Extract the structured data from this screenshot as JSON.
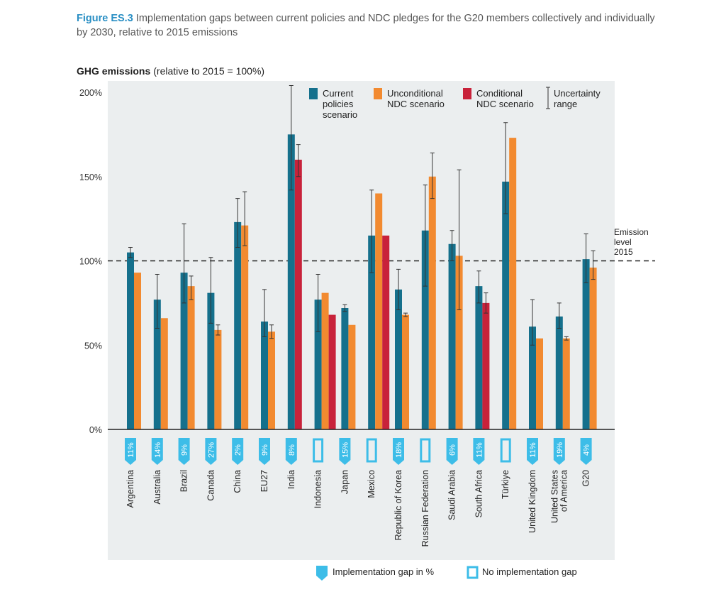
{
  "figure": {
    "label": "Figure ES.3",
    "caption": "Implementation gaps between current policies and NDC pledges for the G20 members collectively and individually by 2030, relative to 2015 emissions"
  },
  "colors": {
    "current": "#15708c",
    "unconditional": "#f28a30",
    "conditional": "#c8223a",
    "gap_fill": "#3dbde8",
    "panel_bg": "#ebeeef",
    "baseline": "#222222"
  },
  "chart_data": {
    "type": "bar",
    "title": "GHG emissions",
    "title_note": "(relative to 2015 = 100%)",
    "ylim": [
      0,
      210
    ],
    "yticks": [
      0,
      50,
      100,
      150,
      200
    ],
    "ytick_labels": [
      "0%",
      "50%",
      "100%",
      "150%",
      "200%"
    ],
    "reference_line": {
      "value": 100,
      "label_lines": [
        "Emission",
        "level",
        "2015"
      ]
    },
    "legend": {
      "placement": "top",
      "current": [
        "Current",
        "policies",
        "scenario"
      ],
      "unconditional": [
        "Unconditional",
        "NDC scenario"
      ],
      "conditional": [
        "Conditional",
        "NDC scenario"
      ],
      "uncertainty": [
        "Uncertainty",
        "range"
      ]
    },
    "bottom_legend": {
      "gap": "Implementation gap in %",
      "no_gap": "No implementation gap"
    },
    "categories": [
      {
        "name": [
          "Argentina"
        ],
        "current": 105,
        "current_err": [
          102,
          108
        ],
        "unconditional": 93,
        "gap": "11%"
      },
      {
        "name": [
          "Australia"
        ],
        "current": 77,
        "current_err": [
          60,
          92
        ],
        "unconditional": 66,
        "gap": "14%"
      },
      {
        "name": [
          "Brazil"
        ],
        "current": 93,
        "current_err": [
          75,
          122
        ],
        "unconditional": 85,
        "uncond_err": [
          77,
          91
        ],
        "gap": "9%"
      },
      {
        "name": [
          "Canada"
        ],
        "current": 81,
        "current_err": [
          63,
          102
        ],
        "unconditional": 59,
        "uncond_err": [
          56,
          62
        ],
        "gap": "27%"
      },
      {
        "name": [
          "China"
        ],
        "current": 123,
        "current_err": [
          108,
          137
        ],
        "unconditional": 121,
        "uncond_err": [
          109,
          141
        ],
        "gap": "2%"
      },
      {
        "name": [
          "EU27"
        ],
        "current": 64,
        "current_err": [
          55,
          83
        ],
        "unconditional": 58,
        "uncond_err": [
          54,
          62
        ],
        "gap": "9%"
      },
      {
        "name": [
          "India"
        ],
        "current": 175,
        "current_err": [
          142,
          204
        ],
        "conditional": 160,
        "cond_err": [
          150,
          169
        ],
        "gap": "8%"
      },
      {
        "name": [
          "Indonesia"
        ],
        "current": 77,
        "current_err": [
          58,
          92
        ],
        "unconditional": 81,
        "conditional": 68,
        "gap": null
      },
      {
        "name": [
          "Japan"
        ],
        "current": 72,
        "current_err": [
          70,
          74
        ],
        "unconditional": 62,
        "gap": "15%"
      },
      {
        "name": [
          "Mexico"
        ],
        "current": 115,
        "current_err": [
          93,
          142
        ],
        "unconditional": 140,
        "conditional": 115,
        "gap": null
      },
      {
        "name": [
          "Republic of Korea"
        ],
        "current": 83,
        "current_err": [
          71,
          95
        ],
        "unconditional": 68,
        "uncond_err": [
          67,
          69
        ],
        "gap": "18%"
      },
      {
        "name": [
          "Russian Federation"
        ],
        "current": 118,
        "current_err": [
          85,
          145
        ],
        "unconditional": 150,
        "uncond_err": [
          137,
          164
        ],
        "gap": null
      },
      {
        "name": [
          "Saudi Arabia"
        ],
        "current": 110,
        "current_err": [
          100,
          118
        ],
        "unconditional": 103,
        "uncond_err": [
          71,
          154
        ],
        "gap": "6%"
      },
      {
        "name": [
          "South Africa"
        ],
        "current": 85,
        "current_err": [
          75,
          94
        ],
        "conditional": 75,
        "cond_err": [
          69,
          81
        ],
        "gap": "11%"
      },
      {
        "name": [
          "Türkiye"
        ],
        "current": 147,
        "current_err": [
          128,
          182
        ],
        "unconditional": 173,
        "gap": null
      },
      {
        "name": [
          "United Kingdom"
        ],
        "current": 61,
        "current_err": [
          50,
          77
        ],
        "unconditional": 54,
        "gap": "11%"
      },
      {
        "name": [
          "United States",
          "of America"
        ],
        "current": 67,
        "current_err": [
          60,
          75
        ],
        "unconditional": 54,
        "uncond_err": [
          53,
          55
        ],
        "gap": "19%"
      },
      {
        "name": [
          "G20"
        ],
        "current": 101,
        "current_err": [
          87,
          116
        ],
        "unconditional": 96,
        "uncond_err": [
          89,
          106
        ],
        "gap": "4%"
      }
    ]
  }
}
